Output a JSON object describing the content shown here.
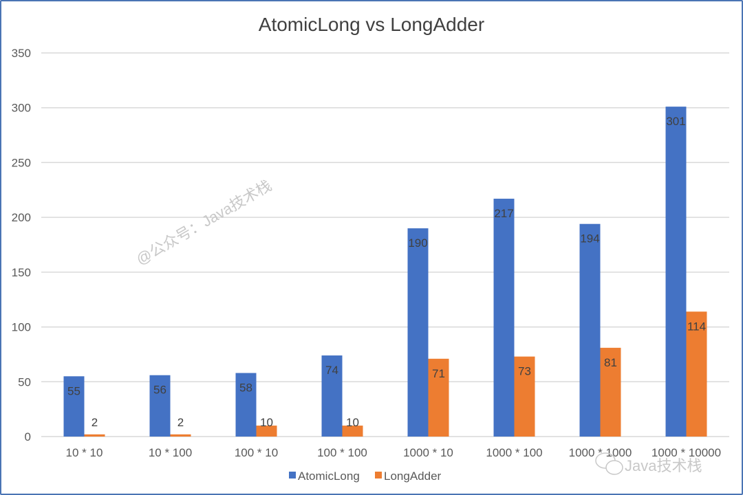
{
  "chart_data": {
    "type": "bar",
    "title": "AtomicLong vs LongAdder",
    "categories": [
      "10 * 10",
      "10 * 100",
      "100 * 10",
      "100 * 100",
      "1000 * 10",
      "1000 * 100",
      "1000 * 1000",
      "1000 * 10000"
    ],
    "series": [
      {
        "name": "AtomicLong",
        "color": "#4472c4",
        "values": [
          55,
          56,
          58,
          74,
          190,
          217,
          194,
          301
        ]
      },
      {
        "name": "LongAdder",
        "color": "#ed7d31",
        "values": [
          2,
          2,
          10,
          10,
          71,
          73,
          81,
          114
        ]
      }
    ],
    "ylim": [
      0,
      350
    ],
    "yticks": [
      0,
      50,
      100,
      150,
      200,
      250,
      300,
      350
    ],
    "grid": true,
    "legend": "bottom",
    "data_labels": true
  },
  "watermarks": {
    "diagonal": "@公众号：Java技术栈",
    "corner": "Java技术栈"
  }
}
